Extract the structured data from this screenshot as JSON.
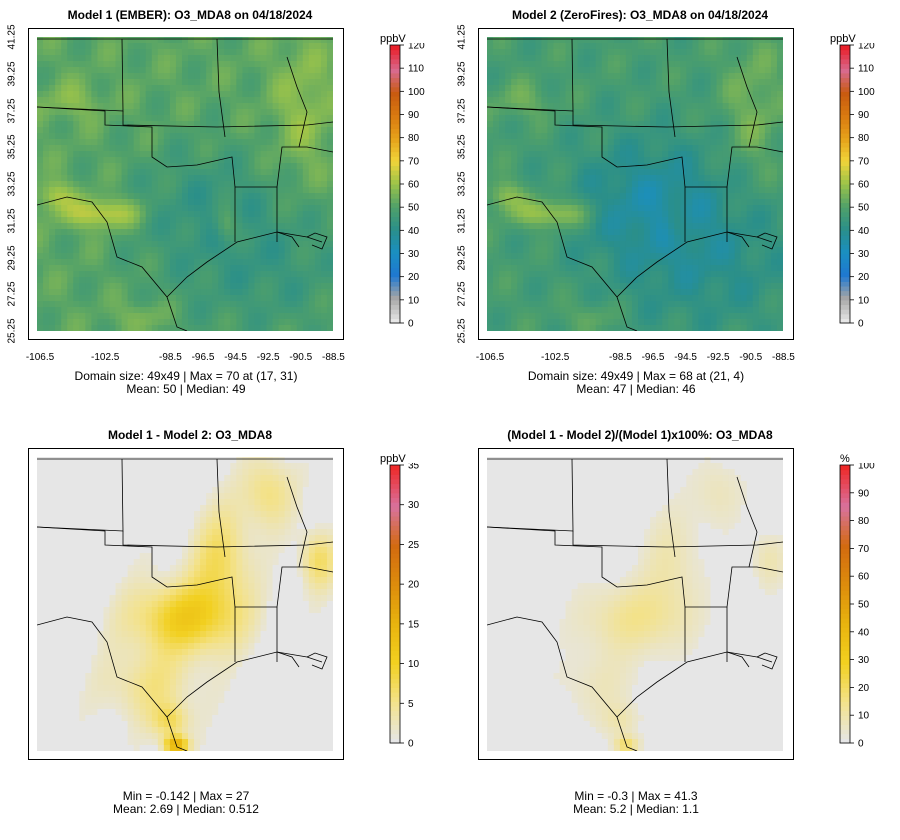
{
  "panels": [
    {
      "title": "Model 1 (EMBER): O3_MDA8 on 04/18/2024",
      "unit": "ppbV",
      "cb_ticks": [
        "0",
        "10",
        "20",
        "30",
        "40",
        "50",
        "60",
        "70",
        "80",
        "90",
        "100",
        "110",
        "120"
      ],
      "cb_max": 120,
      "palette": "conc",
      "show_axes": true,
      "stats_line1": "Domain size: 49x49 | Max = 70 at (17, 31)",
      "stats_line2": "Mean: 50 |  Median: 49"
    },
    {
      "title": "Model 2 (ZeroFires): O3_MDA8 on 04/18/2024",
      "unit": "ppbV",
      "cb_ticks": [
        "0",
        "10",
        "20",
        "30",
        "40",
        "50",
        "60",
        "70",
        "80",
        "90",
        "100",
        "110",
        "120"
      ],
      "cb_max": 120,
      "palette": "conc",
      "show_axes": true,
      "stats_line1": "Domain size: 49x49 | Max = 68 at (21, 4)",
      "stats_line2": "Mean: 47 |  Median: 46"
    },
    {
      "title": "Model 1 - Model 2: O3_MDA8",
      "unit": "ppbV",
      "cb_ticks": [
        "0",
        "5",
        "10",
        "15",
        "20",
        "25",
        "30",
        "35"
      ],
      "cb_max": 35,
      "palette": "diff",
      "show_axes": false,
      "stats_line1": "Min = -0.142 | Max = 27",
      "stats_line2": "Mean: 2.69 |  Median: 0.512"
    },
    {
      "title": "(Model 1 - Model 2)/(Model 1)x100%: O3_MDA8",
      "unit": "%",
      "cb_ticks": [
        "0",
        "10",
        "20",
        "30",
        "40",
        "50",
        "60",
        "70",
        "80",
        "90",
        "100"
      ],
      "cb_max": 100,
      "palette": "diff",
      "show_axes": false,
      "stats_line1": "Min = -0.3 | Max = 41.3",
      "stats_line2": "Mean: 5.2 |  Median: 1.1"
    }
  ],
  "lat_ticks": [
    "25.25",
    "27.25",
    "29.25",
    "31.25",
    "33.25",
    "35.25",
    "37.25",
    "39.25",
    "41.25"
  ],
  "lon_ticks": [
    "-106.5",
    "-102.5",
    "-98.5",
    "-96.5",
    "-94.5",
    "-92.5",
    "-90.5",
    "-88.5"
  ],
  "colors": {
    "conc_scale": [
      "#e6e6e6",
      "#a6a6a6",
      "#1f78d1",
      "#1a8fc2",
      "#2a8f8a",
      "#4fa06a",
      "#9ac34a",
      "#f0d53a",
      "#e6a21a",
      "#d97a10",
      "#c85a10",
      "#d86a8f",
      "#e8202a"
    ],
    "diff_scale": [
      "#e6e6e6",
      "#f3e28a",
      "#f2d020",
      "#e8b40e",
      "#dd8c0c",
      "#d36a10",
      "#d8729e",
      "#ee2a2a"
    ],
    "no_data_grey": "#e6e6e6"
  },
  "chart_data": [
    {
      "type": "heatmap",
      "title": "Model 1 (EMBER): O3_MDA8 on 04/18/2024",
      "grid": [
        49,
        49
      ],
      "colorbar_label": "ppbV",
      "colorbar_range": [
        0,
        120
      ],
      "xticks": [
        -106.5,
        -102.5,
        -98.5,
        -96.5,
        -94.5,
        -92.5,
        -90.5,
        -88.5
      ],
      "yticks": [
        25.25,
        27.25,
        29.25,
        31.25,
        33.25,
        35.25,
        37.25,
        39.25,
        41.25
      ],
      "max": 70,
      "max_at": [
        17,
        31
      ],
      "mean": 50,
      "median": 49
    },
    {
      "type": "heatmap",
      "title": "Model 2 (ZeroFires): O3_MDA8 on 04/18/2024",
      "grid": [
        49,
        49
      ],
      "colorbar_label": "ppbV",
      "colorbar_range": [
        0,
        120
      ],
      "xticks": [
        -106.5,
        -102.5,
        -98.5,
        -96.5,
        -94.5,
        -92.5,
        -90.5,
        -88.5
      ],
      "yticks": [
        25.25,
        27.25,
        29.25,
        31.25,
        33.25,
        35.25,
        37.25,
        39.25,
        41.25
      ],
      "max": 68,
      "max_at": [
        21,
        4
      ],
      "mean": 47,
      "median": 46
    },
    {
      "type": "heatmap",
      "title": "Model 1 - Model 2: O3_MDA8",
      "colorbar_label": "ppbV",
      "colorbar_range": [
        0,
        35
      ],
      "min": -0.142,
      "max": 27,
      "mean": 2.69,
      "median": 0.512
    },
    {
      "type": "heatmap",
      "title": "(Model 1 - Model 2)/(Model 1)x100%: O3_MDA8",
      "colorbar_label": "%",
      "colorbar_range": [
        0,
        100
      ],
      "min": -0.3,
      "max": 41.3,
      "mean": 5.2,
      "median": 1.1
    }
  ]
}
